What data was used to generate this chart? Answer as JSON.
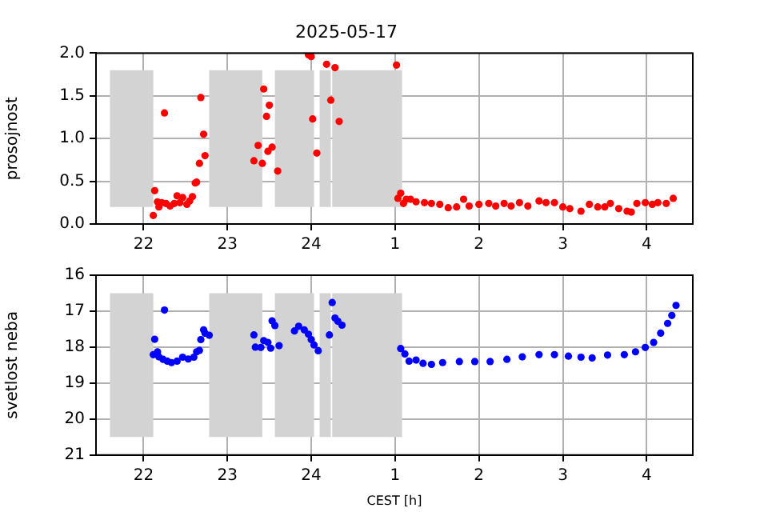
{
  "chart_data": [
    {
      "type": "scatter",
      "title": "2025-05-17",
      "ylabel": "prosojnost",
      "color": "#ff0000",
      "marker": "circle",
      "grid": true,
      "x": [
        "2025-05-17T22:07",
        "2025-05-17T22:08",
        "2025-05-17T22:15",
        "2025-05-17T22:10",
        "2025-05-17T22:11",
        "2025-05-17T22:13",
        "2025-05-17T22:16",
        "2025-05-17T22:19",
        "2025-05-17T22:22",
        "2025-05-17T22:24",
        "2025-05-17T22:26",
        "2025-05-17T22:28",
        "2025-05-17T22:31",
        "2025-05-17T22:33",
        "2025-05-17T22:35",
        "2025-05-17T22:37",
        "2025-05-17T22:38",
        "2025-05-17T22:40",
        "2025-05-17T22:41",
        "2025-05-17T22:43",
        "2025-05-17T22:44",
        "2025-05-17T23:19",
        "2025-05-17T23:22",
        "2025-05-17T23:25",
        "2025-05-17T23:26",
        "2025-05-17T23:28",
        "2025-05-17T23:29",
        "2025-05-17T23:30",
        "2025-05-17T23:32",
        "2025-05-17T23:36",
        "2025-05-17T23:58",
        "2025-05-18T00:00",
        "2025-05-18T00:01",
        "2025-05-18T00:04",
        "2025-05-18T00:11",
        "2025-05-18T00:14",
        "2025-05-18T00:17",
        "2025-05-18T00:20",
        "2025-05-18T01:01",
        "2025-05-18T01:02",
        "2025-05-18T01:04",
        "2025-05-18T01:06",
        "2025-05-18T01:08",
        "2025-05-18T01:11",
        "2025-05-18T01:15",
        "2025-05-18T01:21",
        "2025-05-18T01:26",
        "2025-05-18T01:32",
        "2025-05-18T01:38",
        "2025-05-18T01:44",
        "2025-05-18T01:49",
        "2025-05-18T01:53",
        "2025-05-18T02:00",
        "2025-05-18T02:07",
        "2025-05-18T02:12",
        "2025-05-18T02:18",
        "2025-05-18T02:23",
        "2025-05-18T02:29",
        "2025-05-18T02:35",
        "2025-05-18T02:43",
        "2025-05-18T02:48",
        "2025-05-18T02:54",
        "2025-05-18T03:00",
        "2025-05-18T03:05",
        "2025-05-18T03:13",
        "2025-05-18T03:19",
        "2025-05-18T03:25",
        "2025-05-18T03:30",
        "2025-05-18T03:34",
        "2025-05-18T03:40",
        "2025-05-18T03:46",
        "2025-05-18T03:49",
        "2025-05-18T03:53",
        "2025-05-18T03:59",
        "2025-05-18T04:04",
        "2025-05-18T04:08",
        "2025-05-18T04:14",
        "2025-05-18T04:19"
      ],
      "values": [
        0.1,
        0.39,
        1.3,
        0.26,
        0.2,
        0.25,
        0.24,
        0.21,
        0.24,
        0.33,
        0.25,
        0.31,
        0.23,
        0.27,
        0.32,
        0.48,
        0.49,
        0.71,
        1.48,
        1.05,
        0.8,
        0.74,
        0.92,
        0.71,
        1.58,
        1.26,
        0.85,
        1.39,
        0.9,
        0.62,
        1.98,
        1.96,
        1.23,
        0.83,
        1.87,
        1.45,
        1.83,
        1.2,
        1.86,
        0.3,
        0.36,
        0.24,
        0.29,
        0.29,
        0.26,
        0.25,
        0.24,
        0.23,
        0.19,
        0.2,
        0.29,
        0.21,
        0.23,
        0.24,
        0.21,
        0.24,
        0.21,
        0.25,
        0.21,
        0.27,
        0.25,
        0.25,
        0.2,
        0.18,
        0.15,
        0.23,
        0.2,
        0.2,
        0.24,
        0.18,
        0.15,
        0.14,
        0.24,
        0.25,
        0.23,
        0.25,
        0.24,
        0.3
      ],
      "xlim": [
        "2025-05-17T21:26",
        "2025-05-18T04:33"
      ],
      "xticks": [
        {
          "value": "2025-05-17T22:00",
          "label": "22"
        },
        {
          "value": "2025-05-17T23:00",
          "label": "23"
        },
        {
          "value": "2025-05-18T00:00",
          "label": "24"
        },
        {
          "value": "2025-05-18T01:00",
          "label": "1"
        },
        {
          "value": "2025-05-18T02:00",
          "label": "2"
        },
        {
          "value": "2025-05-18T03:00",
          "label": "3"
        },
        {
          "value": "2025-05-18T04:00",
          "label": "4"
        }
      ],
      "ylim": [
        0,
        2
      ],
      "yticks": [
        {
          "value": 0,
          "label": "0.0"
        },
        {
          "value": 0.5,
          "label": "0.5"
        },
        {
          "value": 1,
          "label": "1.0"
        },
        {
          "value": 1.5,
          "label": "1.5"
        },
        {
          "value": 2,
          "label": "2.0"
        }
      ],
      "bands": [
        {
          "axis": "x",
          "from": "2025-05-17T21:36",
          "to": "2025-05-17T22:07",
          "color": "#d3d3d3"
        },
        {
          "axis": "x",
          "from": "2025-05-17T22:47",
          "to": "2025-05-17T23:25",
          "color": "#d3d3d3"
        },
        {
          "axis": "x",
          "from": "2025-05-17T23:34",
          "to": "2025-05-18T00:02",
          "color": "#d3d3d3"
        },
        {
          "axis": "x",
          "from": "2025-05-18T00:06",
          "to": "2025-05-18T00:14",
          "color": "#d3d3d3"
        },
        {
          "axis": "x",
          "from": "2025-05-18T00:15",
          "to": "2025-05-18T01:05",
          "color": "#d3d3d3"
        }
      ]
    },
    {
      "type": "scatter",
      "ylabel": "svetlost neba",
      "xlabel": "CEST [h]",
      "color": "#0000ff",
      "marker": "circle",
      "grid": true,
      "x": [
        "2025-05-17T22:07",
        "2025-05-17T22:08",
        "2025-05-17T22:15",
        "2025-05-17T22:10",
        "2025-05-17T22:11",
        "2025-05-17T22:14",
        "2025-05-17T22:17",
        "2025-05-17T22:20",
        "2025-05-17T22:24",
        "2025-05-17T22:28",
        "2025-05-17T22:32",
        "2025-05-17T22:36",
        "2025-05-17T22:38",
        "2025-05-17T22:40",
        "2025-05-17T22:41",
        "2025-05-17T22:43",
        "2025-05-17T22:44",
        "2025-05-17T22:47",
        "2025-05-17T23:19",
        "2025-05-17T23:20",
        "2025-05-17T23:24",
        "2025-05-17T23:26",
        "2025-05-17T23:29",
        "2025-05-17T23:31",
        "2025-05-17T23:32",
        "2025-05-17T23:34",
        "2025-05-17T23:37",
        "2025-05-17T23:48",
        "2025-05-17T23:51",
        "2025-05-17T23:55",
        "2025-05-17T23:58",
        "2025-05-18T00:00",
        "2025-05-18T00:02",
        "2025-05-18T00:05",
        "2025-05-18T00:13",
        "2025-05-18T00:15",
        "2025-05-18T00:17",
        "2025-05-18T00:19",
        "2025-05-18T00:22",
        "2025-05-18T01:04",
        "2025-05-18T01:07",
        "2025-05-18T01:10",
        "2025-05-18T01:15",
        "2025-05-18T01:20",
        "2025-05-18T01:26",
        "2025-05-18T01:34",
        "2025-05-18T01:46",
        "2025-05-18T01:57",
        "2025-05-18T02:08",
        "2025-05-18T02:20",
        "2025-05-18T02:31",
        "2025-05-18T02:43",
        "2025-05-18T02:54",
        "2025-05-18T03:04",
        "2025-05-18T03:13",
        "2025-05-18T03:21",
        "2025-05-18T03:32",
        "2025-05-18T03:44",
        "2025-05-18T03:52",
        "2025-05-18T03:59",
        "2025-05-18T04:05",
        "2025-05-18T04:10",
        "2025-05-18T04:15",
        "2025-05-18T04:18",
        "2025-05-18T04:21"
      ],
      "values": [
        18.21,
        17.78,
        16.97,
        18.13,
        18.27,
        18.34,
        18.39,
        18.43,
        18.39,
        18.28,
        18.33,
        18.28,
        18.13,
        18.09,
        17.79,
        17.52,
        17.61,
        17.67,
        17.66,
        18.0,
        18.01,
        17.82,
        17.87,
        18.03,
        17.27,
        17.4,
        17.96,
        17.55,
        17.42,
        17.52,
        17.64,
        17.79,
        17.94,
        18.1,
        17.66,
        16.76,
        17.19,
        17.28,
        17.39,
        18.04,
        18.19,
        18.39,
        18.36,
        18.45,
        18.48,
        18.43,
        18.4,
        18.4,
        18.4,
        18.34,
        18.27,
        18.21,
        18.21,
        18.25,
        18.28,
        18.3,
        18.22,
        18.21,
        18.13,
        18.01,
        17.87,
        17.61,
        17.34,
        17.12,
        16.84
      ],
      "xlim": [
        "2025-05-17T21:26",
        "2025-05-18T04:33"
      ],
      "xticks": [
        {
          "value": "2025-05-17T22:00",
          "label": "22"
        },
        {
          "value": "2025-05-17T23:00",
          "label": "23"
        },
        {
          "value": "2025-05-18T00:00",
          "label": "24"
        },
        {
          "value": "2025-05-18T01:00",
          "label": "1"
        },
        {
          "value": "2025-05-18T02:00",
          "label": "2"
        },
        {
          "value": "2025-05-18T03:00",
          "label": "3"
        },
        {
          "value": "2025-05-18T04:00",
          "label": "4"
        }
      ],
      "ylim": [
        21,
        16
      ],
      "yticks": [
        16,
        17,
        18,
        19,
        20,
        21
      ],
      "bands": [
        {
          "axis": "x",
          "from": "2025-05-17T21:36",
          "to": "2025-05-17T22:07",
          "color": "#d3d3d3"
        },
        {
          "axis": "x",
          "from": "2025-05-17T22:47",
          "to": "2025-05-17T23:25",
          "color": "#d3d3d3"
        },
        {
          "axis": "x",
          "from": "2025-05-17T23:34",
          "to": "2025-05-18T00:02",
          "color": "#d3d3d3"
        },
        {
          "axis": "x",
          "from": "2025-05-18T00:06",
          "to": "2025-05-18T00:14",
          "color": "#d3d3d3"
        },
        {
          "axis": "x",
          "from": "2025-05-18T00:15",
          "to": "2025-05-18T01:05",
          "color": "#d3d3d3"
        }
      ]
    }
  ]
}
